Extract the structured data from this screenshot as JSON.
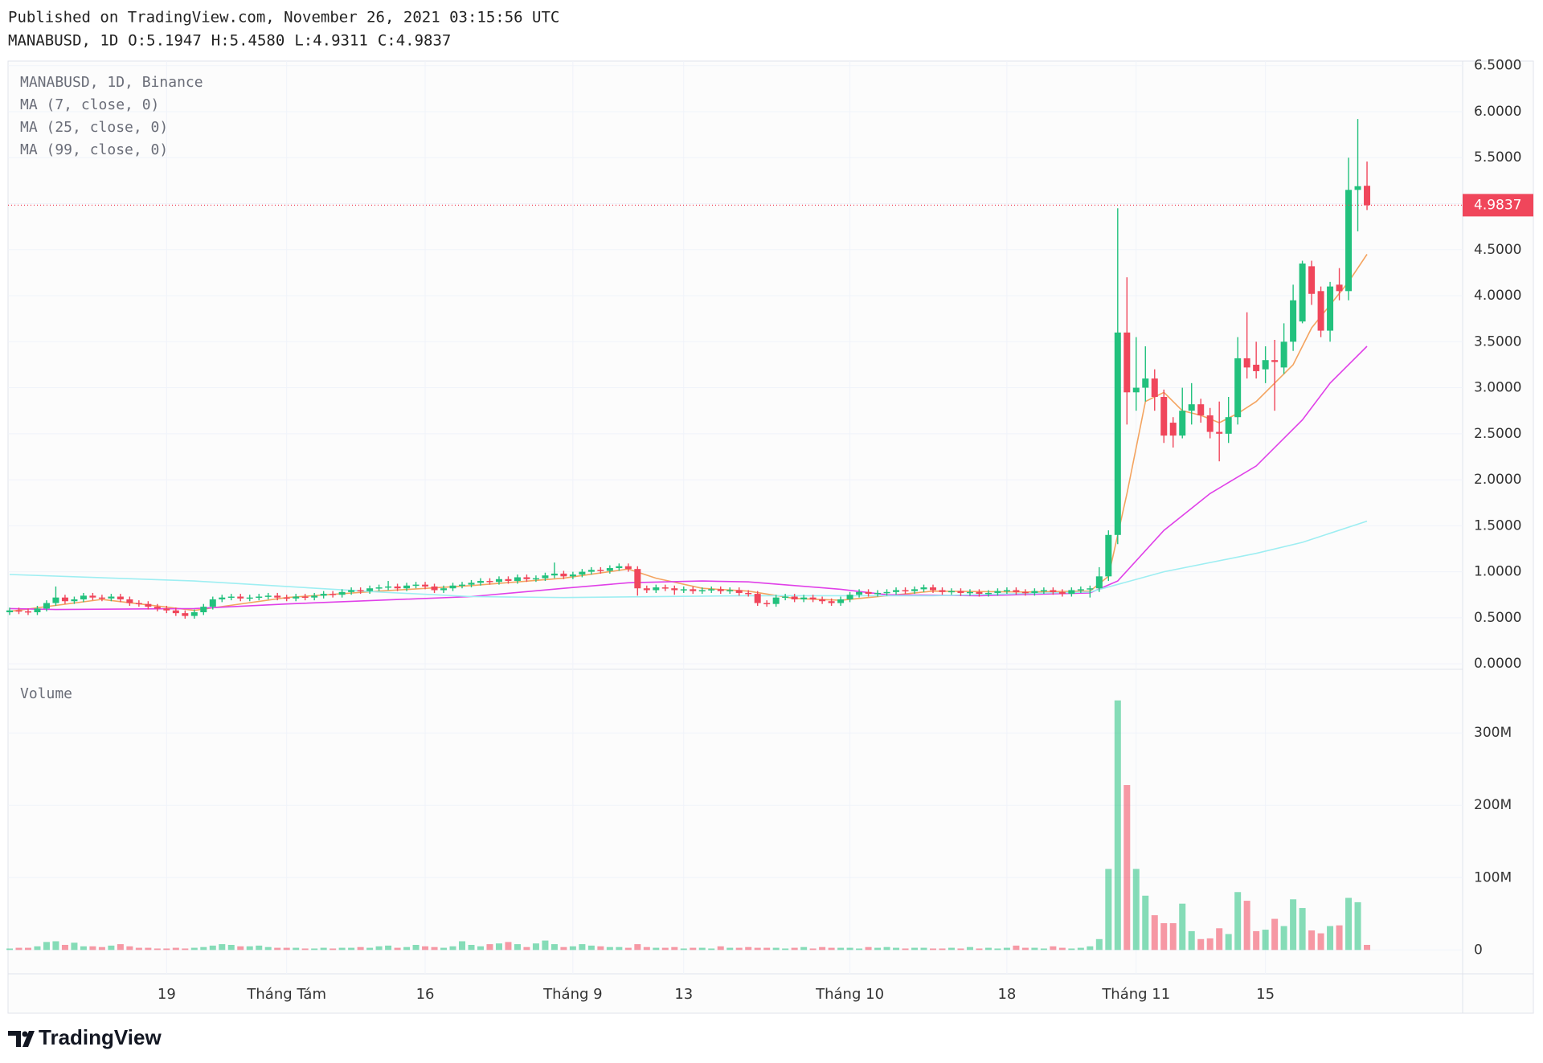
{
  "header": {
    "published": "Published on TradingView.com, November 26, 2021 03:15:56 UTC",
    "symbol": "MANABUSD, 1D",
    "ohlc": [
      "O:5.1947",
      "H:5.4580",
      "L:4.9311",
      "C:4.9837"
    ]
  },
  "footer": {
    "brand": "TradingView"
  },
  "chart_data": {
    "type": "candlestick",
    "title": "MANABUSD, 1D, Binance",
    "grid": true,
    "up_color": "#22c17d",
    "down_color": "#f0465b",
    "ylim": [
      -0.06,
      6.55
    ],
    "yticks": [
      {
        "value": 0,
        "label": "0.0000"
      },
      {
        "value": 0.5,
        "label": "0.5000"
      },
      {
        "value": 1,
        "label": "1.0000"
      },
      {
        "value": 1.5,
        "label": "1.5000"
      },
      {
        "value": 2,
        "label": "2.0000"
      },
      {
        "value": 2.5,
        "label": "2.5000"
      },
      {
        "value": 3,
        "label": "3.0000"
      },
      {
        "value": 3.5,
        "label": "3.5000"
      },
      {
        "value": 4,
        "label": "4.0000"
      },
      {
        "value": 4.5,
        "label": "4.5000"
      },
      {
        "value": 5,
        "label": "5.0000"
      },
      {
        "value": 5.5,
        "label": "5.5000"
      },
      {
        "value": 6,
        "label": "6.0000"
      },
      {
        "value": 6.5,
        "label": "6.5000"
      }
    ],
    "y2lim": [
      -33,
      388
    ],
    "y2ticks": [
      0,
      {
        "value": 100,
        "label": "100M"
      },
      {
        "value": 200,
        "label": "200M"
      },
      {
        "value": 300,
        "label": "300M"
      }
    ],
    "categories": [
      null,
      null,
      null,
      null,
      null,
      null,
      null,
      null,
      null,
      null,
      null,
      null,
      null,
      null,
      null,
      null,
      null,
      "19",
      null,
      null,
      null,
      null,
      null,
      null,
      null,
      null,
      null,
      null,
      null,
      null,
      "Tháng Tám",
      null,
      null,
      null,
      null,
      null,
      null,
      null,
      null,
      null,
      null,
      null,
      null,
      null,
      null,
      "16",
      null,
      null,
      null,
      null,
      null,
      null,
      null,
      null,
      null,
      null,
      null,
      null,
      null,
      null,
      null,
      "Tháng 9",
      null,
      null,
      null,
      null,
      null,
      null,
      null,
      null,
      null,
      null,
      null,
      "13",
      null,
      null,
      null,
      null,
      null,
      null,
      null,
      null,
      null,
      null,
      null,
      null,
      null,
      null,
      null,
      null,
      null,
      "Tháng 10",
      null,
      null,
      null,
      null,
      null,
      null,
      null,
      null,
      null,
      null,
      null,
      null,
      null,
      null,
      null,
      null,
      "18",
      null,
      null,
      null,
      null,
      null,
      null,
      null,
      null,
      null,
      null,
      null,
      null,
      null,
      "Tháng 11",
      null,
      null,
      null,
      null,
      null,
      null,
      null,
      null,
      null,
      null,
      null,
      null,
      null,
      "15",
      null,
      null,
      null,
      null,
      null,
      null,
      null,
      null,
      null,
      null,
      null
    ],
    "candles": [
      [
        0.56,
        0.61,
        0.53,
        0.58
      ],
      [
        0.58,
        0.61,
        0.54,
        0.57
      ],
      [
        0.57,
        0.6,
        0.53,
        0.56
      ],
      [
        0.56,
        0.63,
        0.53,
        0.6
      ],
      [
        0.6,
        0.69,
        0.57,
        0.66
      ],
      [
        0.66,
        0.84,
        0.63,
        0.72
      ],
      [
        0.72,
        0.75,
        0.65,
        0.68
      ],
      [
        0.68,
        0.73,
        0.65,
        0.7
      ],
      [
        0.7,
        0.77,
        0.67,
        0.74
      ],
      [
        0.74,
        0.77,
        0.69,
        0.72
      ],
      [
        0.72,
        0.75,
        0.68,
        0.71
      ],
      [
        0.71,
        0.76,
        0.68,
        0.73
      ],
      [
        0.73,
        0.76,
        0.67,
        0.7
      ],
      [
        0.7,
        0.73,
        0.63,
        0.66
      ],
      [
        0.66,
        0.69,
        0.62,
        0.65
      ],
      [
        0.65,
        0.68,
        0.59,
        0.62
      ],
      [
        0.62,
        0.65,
        0.57,
        0.6
      ],
      [
        0.6,
        0.63,
        0.55,
        0.58
      ],
      [
        0.58,
        0.61,
        0.52,
        0.55
      ],
      [
        0.55,
        0.58,
        0.49,
        0.52
      ],
      [
        0.52,
        0.59,
        0.49,
        0.56
      ],
      [
        0.56,
        0.65,
        0.53,
        0.62
      ],
      [
        0.62,
        0.73,
        0.59,
        0.7
      ],
      [
        0.7,
        0.75,
        0.67,
        0.72
      ],
      [
        0.72,
        0.76,
        0.69,
        0.73
      ],
      [
        0.73,
        0.76,
        0.68,
        0.71
      ],
      [
        0.71,
        0.75,
        0.68,
        0.72
      ],
      [
        0.72,
        0.76,
        0.69,
        0.73
      ],
      [
        0.73,
        0.77,
        0.7,
        0.74
      ],
      [
        0.74,
        0.77,
        0.69,
        0.72
      ],
      [
        0.72,
        0.75,
        0.68,
        0.71
      ],
      [
        0.71,
        0.76,
        0.68,
        0.73
      ],
      [
        0.73,
        0.76,
        0.69,
        0.72
      ],
      [
        0.72,
        0.77,
        0.69,
        0.74
      ],
      [
        0.74,
        0.79,
        0.71,
        0.76
      ],
      [
        0.76,
        0.79,
        0.72,
        0.75
      ],
      [
        0.75,
        0.81,
        0.72,
        0.78
      ],
      [
        0.78,
        0.83,
        0.75,
        0.8
      ],
      [
        0.8,
        0.83,
        0.76,
        0.79
      ],
      [
        0.79,
        0.85,
        0.76,
        0.82
      ],
      [
        0.82,
        0.86,
        0.79,
        0.83
      ],
      [
        0.83,
        0.9,
        0.8,
        0.84
      ],
      [
        0.84,
        0.87,
        0.79,
        0.82
      ],
      [
        0.82,
        0.88,
        0.79,
        0.85
      ],
      [
        0.85,
        0.89,
        0.82,
        0.86
      ],
      [
        0.86,
        0.89,
        0.81,
        0.84
      ],
      [
        0.84,
        0.87,
        0.77,
        0.8
      ],
      [
        0.8,
        0.85,
        0.77,
        0.82
      ],
      [
        0.82,
        0.88,
        0.79,
        0.85
      ],
      [
        0.85,
        0.89,
        0.82,
        0.86
      ],
      [
        0.86,
        0.91,
        0.83,
        0.88
      ],
      [
        0.88,
        0.93,
        0.85,
        0.9
      ],
      [
        0.9,
        0.93,
        0.86,
        0.89
      ],
      [
        0.89,
        0.95,
        0.86,
        0.92
      ],
      [
        0.92,
        0.95,
        0.87,
        0.9
      ],
      [
        0.9,
        0.97,
        0.87,
        0.94
      ],
      [
        0.94,
        0.97,
        0.89,
        0.92
      ],
      [
        0.92,
        0.96,
        0.89,
        0.93
      ],
      [
        0.93,
        0.99,
        0.9,
        0.96
      ],
      [
        0.96,
        1.1,
        0.93,
        0.98
      ],
      [
        0.98,
        1.01,
        0.92,
        0.95
      ],
      [
        0.95,
        1.0,
        0.92,
        0.97
      ],
      [
        0.97,
        1.03,
        0.94,
        1.0
      ],
      [
        1.0,
        1.05,
        0.97,
        1.02
      ],
      [
        1.02,
        1.05,
        0.98,
        1.01
      ],
      [
        1.01,
        1.07,
        0.98,
        1.04
      ],
      [
        1.04,
        1.09,
        1.01,
        1.06
      ],
      [
        1.06,
        1.09,
        1.0,
        1.03
      ],
      [
        1.03,
        1.06,
        0.74,
        0.82
      ],
      [
        0.82,
        0.85,
        0.77,
        0.8
      ],
      [
        0.8,
        0.86,
        0.77,
        0.83
      ],
      [
        0.83,
        0.86,
        0.79,
        0.82
      ],
      [
        0.82,
        0.85,
        0.75,
        0.8
      ],
      [
        0.8,
        0.84,
        0.77,
        0.81
      ],
      [
        0.81,
        0.84,
        0.76,
        0.79
      ],
      [
        0.79,
        0.83,
        0.76,
        0.8
      ],
      [
        0.8,
        0.84,
        0.77,
        0.81
      ],
      [
        0.81,
        0.84,
        0.76,
        0.79
      ],
      [
        0.79,
        0.83,
        0.76,
        0.8
      ],
      [
        0.8,
        0.83,
        0.74,
        0.77
      ],
      [
        0.77,
        0.8,
        0.73,
        0.76
      ],
      [
        0.76,
        0.79,
        0.63,
        0.66
      ],
      [
        0.66,
        0.69,
        0.62,
        0.65
      ],
      [
        0.65,
        0.75,
        0.62,
        0.72
      ],
      [
        0.72,
        0.76,
        0.69,
        0.73
      ],
      [
        0.73,
        0.76,
        0.67,
        0.7
      ],
      [
        0.7,
        0.75,
        0.67,
        0.72
      ],
      [
        0.72,
        0.75,
        0.67,
        0.7
      ],
      [
        0.7,
        0.73,
        0.65,
        0.68
      ],
      [
        0.68,
        0.71,
        0.63,
        0.66
      ],
      [
        0.66,
        0.73,
        0.63,
        0.7
      ],
      [
        0.7,
        0.78,
        0.67,
        0.75
      ],
      [
        0.75,
        0.81,
        0.72,
        0.78
      ],
      [
        0.78,
        0.81,
        0.73,
        0.76
      ],
      [
        0.76,
        0.8,
        0.73,
        0.77
      ],
      [
        0.77,
        0.81,
        0.74,
        0.78
      ],
      [
        0.78,
        0.83,
        0.75,
        0.8
      ],
      [
        0.8,
        0.83,
        0.76,
        0.79
      ],
      [
        0.79,
        0.84,
        0.76,
        0.81
      ],
      [
        0.81,
        0.86,
        0.78,
        0.83
      ],
      [
        0.83,
        0.86,
        0.77,
        0.8
      ],
      [
        0.8,
        0.83,
        0.75,
        0.78
      ],
      [
        0.78,
        0.82,
        0.75,
        0.79
      ],
      [
        0.79,
        0.82,
        0.74,
        0.77
      ],
      [
        0.77,
        0.81,
        0.74,
        0.78
      ],
      [
        0.78,
        0.81,
        0.73,
        0.76
      ],
      [
        0.76,
        0.8,
        0.73,
        0.77
      ],
      [
        0.77,
        0.82,
        0.74,
        0.79
      ],
      [
        0.79,
        0.83,
        0.76,
        0.8
      ],
      [
        0.8,
        0.83,
        0.75,
        0.78
      ],
      [
        0.78,
        0.81,
        0.74,
        0.77
      ],
      [
        0.77,
        0.82,
        0.74,
        0.79
      ],
      [
        0.79,
        0.83,
        0.76,
        0.8
      ],
      [
        0.8,
        0.83,
        0.75,
        0.78
      ],
      [
        0.78,
        0.81,
        0.73,
        0.76
      ],
      [
        0.76,
        0.83,
        0.73,
        0.8
      ],
      [
        0.8,
        0.84,
        0.77,
        0.81
      ],
      [
        0.81,
        0.85,
        0.72,
        0.82
      ],
      [
        0.82,
        1.05,
        0.78,
        0.95
      ],
      [
        0.95,
        1.45,
        0.9,
        1.4
      ],
      [
        1.4,
        4.95,
        1.3,
        3.6
      ],
      [
        3.6,
        4.2,
        2.6,
        2.95
      ],
      [
        2.95,
        3.55,
        2.75,
        3.0
      ],
      [
        3.0,
        3.45,
        2.85,
        3.1
      ],
      [
        3.1,
        3.2,
        2.75,
        2.9
      ],
      [
        2.9,
        2.98,
        2.4,
        2.48
      ],
      [
        2.62,
        2.68,
        2.35,
        2.48
      ],
      [
        2.48,
        3.0,
        2.45,
        2.75
      ],
      [
        2.75,
        3.05,
        2.6,
        2.82
      ],
      [
        2.82,
        2.88,
        2.62,
        2.7
      ],
      [
        2.7,
        2.78,
        2.45,
        2.52
      ],
      [
        2.52,
        2.85,
        2.2,
        2.5
      ],
      [
        2.5,
        2.9,
        2.4,
        2.68
      ],
      [
        2.68,
        3.55,
        2.6,
        3.32
      ],
      [
        3.32,
        3.82,
        3.1,
        3.22
      ],
      [
        3.25,
        3.5,
        3.1,
        3.18
      ],
      [
        3.2,
        3.45,
        3.05,
        3.3
      ],
      [
        3.3,
        3.52,
        2.75,
        3.28
      ],
      [
        3.22,
        3.7,
        3.15,
        3.5
      ],
      [
        3.5,
        4.12,
        3.4,
        3.95
      ],
      [
        3.72,
        4.38,
        3.7,
        4.35
      ],
      [
        4.32,
        4.38,
        3.9,
        4.02
      ],
      [
        4.05,
        4.1,
        3.55,
        3.62
      ],
      [
        3.62,
        4.15,
        3.5,
        4.1
      ],
      [
        4.12,
        4.3,
        3.95,
        4.05
      ],
      [
        4.05,
        5.5,
        3.95,
        5.15
      ],
      [
        5.15,
        5.92,
        4.7,
        5.19
      ],
      [
        5.1947,
        5.458,
        4.9311,
        4.9837
      ]
    ],
    "volume": {
      "name": "Volume",
      "axis": "y2",
      "values": [
        2,
        3,
        3,
        5,
        11,
        12,
        7,
        10,
        5,
        5,
        4,
        6,
        8,
        5,
        3,
        3,
        2,
        2,
        3,
        2,
        3,
        4,
        6,
        8,
        7,
        5,
        5,
        6,
        4,
        3,
        3,
        3,
        2,
        2,
        3,
        2,
        3,
        3,
        4,
        3,
        5,
        6,
        3,
        4,
        7,
        5,
        4,
        3,
        5,
        12,
        7,
        5,
        8,
        9,
        11,
        8,
        4,
        9,
        13,
        8,
        4,
        5,
        8,
        6,
        5,
        4,
        4,
        3,
        8,
        4,
        3,
        3,
        4,
        2,
        3,
        3,
        2,
        5,
        3,
        3,
        4,
        3,
        3,
        3,
        2,
        3,
        4,
        2,
        4,
        3,
        3,
        3,
        2,
        4,
        3,
        4,
        3,
        2,
        3,
        3,
        2,
        2,
        3,
        2,
        4,
        2,
        3,
        2,
        3,
        6,
        3,
        3,
        2,
        5,
        3,
        2,
        3,
        5,
        15,
        112,
        345,
        228,
        112,
        75,
        48,
        37,
        37,
        64,
        26,
        15,
        16,
        30,
        22,
        80,
        68,
        26,
        28,
        43,
        33,
        70,
        58,
        27,
        23,
        33,
        34,
        72,
        66,
        7
      ]
    },
    "series": [
      {
        "name": "MA (7, close, 0)",
        "color": "#f4a460",
        "x": [
          0,
          10,
          20,
          30,
          40,
          50,
          60,
          67,
          70,
          75,
          80,
          85,
          90,
          100,
          110,
          117,
          119,
          121,
          123,
          125,
          127,
          129,
          131,
          133,
          135,
          137,
          139,
          141,
          143,
          145,
          147
        ],
        "values": [
          0.57,
          0.7,
          0.58,
          0.72,
          0.79,
          0.85,
          0.93,
          1.03,
          0.93,
          0.82,
          0.79,
          0.71,
          0.69,
          0.79,
          0.78,
          0.79,
          0.95,
          1.85,
          2.85,
          2.95,
          2.75,
          2.7,
          2.62,
          2.72,
          2.85,
          3.05,
          3.25,
          3.65,
          3.9,
          4.15,
          4.45
        ]
      },
      {
        "name": "MA (25, close, 0)",
        "color": "#e040e8",
        "x": [
          0,
          5,
          20,
          30,
          50,
          60,
          67,
          75,
          80,
          90,
          95,
          105,
          117,
          120,
          125,
          130,
          135,
          140,
          143,
          145,
          147
        ],
        "values": [
          0.6,
          0.59,
          0.6,
          0.65,
          0.73,
          0.82,
          0.88,
          0.9,
          0.89,
          0.81,
          0.75,
          0.74,
          0.77,
          0.9,
          1.45,
          1.85,
          2.15,
          2.65,
          3.05,
          3.25,
          3.45
        ]
      },
      {
        "name": "MA (99, close, 0)",
        "color": "#9eeef2",
        "x": [
          0,
          20,
          40,
          50,
          60,
          80,
          100,
          117,
          125,
          135,
          140,
          147
        ],
        "values": [
          0.97,
          0.9,
          0.78,
          0.73,
          0.72,
          0.74,
          0.74,
          0.78,
          1.0,
          1.2,
          1.32,
          1.55
        ]
      }
    ]
  }
}
